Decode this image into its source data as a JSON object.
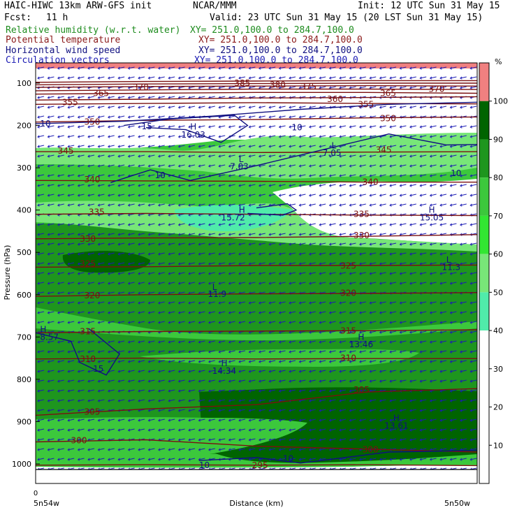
{
  "header": {
    "model": "HAIC-HIWC 13km ARW-GFS init",
    "center": "NCAR/MMM",
    "init": "Init: 12 UTC Sun 31 May 15",
    "fcst_label": "Fcst:",
    "fcst_value": "11 h",
    "valid": "Valid: 23 UTC Sun 31 May 15 (20 LST Sun 31 May 15)"
  },
  "fields": [
    {
      "name": "Relative humidity (w.r.t. water)",
      "xy": "XY= 251.0,100.0 to 284.7,100.0",
      "color": "#1e8c1e"
    },
    {
      "name": "Potential temperature",
      "xy": "XY= 251.0,100.0 to 284.7,100.0",
      "color": "#8b1a1a"
    },
    {
      "name": "Horizontal wind speed",
      "xy": "XY= 251.0,100.0 to 284.7,100.0",
      "color": "#101080"
    },
    {
      "name": "Circulation vectors",
      "xy": "XY= 251.0,100.0 to 284.7,100.0",
      "color": "#1a1ab4"
    }
  ],
  "colorbar": {
    "unit": "%",
    "ticks": [
      "100",
      "90",
      "80",
      "70",
      "60",
      "50",
      "40",
      "30",
      "20",
      "10"
    ],
    "colors": [
      "#f08080",
      "#006400",
      "#1e961e",
      "#3cc83c",
      "#32e632",
      "#78e678",
      "#50ebaa",
      "#ffffff",
      "#ffffff",
      "#ffffff",
      "#ffffff"
    ]
  },
  "chart_data": {
    "type": "heatmap",
    "title": "HAIC-HIWC 13km ARW-GFS init",
    "xlabel": "Distance (km)",
    "ylabel": "Pressure (hPa)",
    "x_ticks": [
      "0"
    ],
    "x_ends": [
      "5n54w",
      "5n50w"
    ],
    "ylim": [
      1050,
      85
    ],
    "y_ticks": [
      100,
      200,
      300,
      400,
      500,
      600,
      700,
      800,
      900,
      1000
    ],
    "theta_contours": [
      {
        "value": 295,
        "p": [
          1003,
          1002,
          1003,
          1002,
          1004
        ]
      },
      {
        "value": 300,
        "p": [
          948,
          943,
          958,
          965,
          972
        ]
      },
      {
        "value": 305,
        "p": [
          885,
          870,
          860,
          830,
          822
        ]
      },
      {
        "value": 310,
        "p": [
          752,
          750,
          752,
          751,
          751
        ]
      },
      {
        "value": 315,
        "p": [
          690,
          687,
          686,
          685,
          683
        ]
      },
      {
        "value": 320,
        "p": [
          604,
          600,
          598,
          597,
          595
        ]
      },
      {
        "value": 325,
        "p": [
          535,
          534,
          531,
          531,
          530
        ]
      },
      {
        "value": 330,
        "p": [
          468,
          466,
          465,
          462,
          458
        ]
      },
      {
        "value": 335,
        "p": [
          410,
          408,
          410,
          412,
          413
        ]
      },
      {
        "value": 340,
        "p": [
          330,
          331,
          332,
          334,
          334
        ]
      },
      {
        "value": 345,
        "p": [
          262,
          262,
          264,
          263,
          262
        ]
      },
      {
        "value": 350,
        "p": [
          192,
          188,
          186,
          182,
          180
        ]
      },
      {
        "value": 355,
        "p": [
          150,
          148,
          146,
          148,
          149
        ]
      },
      {
        "value": 360,
        "p": [
          140,
          138,
          135,
          134,
          132
        ]
      },
      {
        "value": 365,
        "p": [
          126,
          124,
          122,
          122,
          124
        ]
      },
      {
        "value": 370,
        "p": [
          118,
          116,
          114,
          114,
          115
        ]
      },
      {
        "value": 375,
        "p": [
          110,
          108,
          107,
          106,
          107
        ]
      },
      {
        "value": 380,
        "p": [
          104,
          102,
          101,
          100,
          100
        ]
      },
      {
        "value": 385,
        "p": [
          98,
          96,
          95,
          94,
          94
        ]
      }
    ],
    "theta_labels": [
      {
        "text": "355",
        "x": 0.06,
        "p": 145
      },
      {
        "text": "350",
        "x": 0.11,
        "p": 192
      },
      {
        "text": "345",
        "x": 0.05,
        "p": 260
      },
      {
        "text": "340",
        "x": 0.11,
        "p": 328
      },
      {
        "text": "335",
        "x": 0.12,
        "p": 405
      },
      {
        "text": "330",
        "x": 0.1,
        "p": 468
      },
      {
        "text": "325",
        "x": 0.1,
        "p": 527
      },
      {
        "text": "320",
        "x": 0.11,
        "p": 602
      },
      {
        "text": "315",
        "x": 0.1,
        "p": 687
      },
      {
        "text": "310",
        "x": 0.1,
        "p": 752
      },
      {
        "text": "305",
        "x": 0.11,
        "p": 877
      },
      {
        "text": "300",
        "x": 0.08,
        "p": 945
      },
      {
        "text": "370",
        "x": 0.22,
        "p": 110
      },
      {
        "text": "365",
        "x": 0.13,
        "p": 124
      },
      {
        "text": "385",
        "x": 0.45,
        "p": 100
      },
      {
        "text": "380",
        "x": 0.53,
        "p": 104
      },
      {
        "text": "375",
        "x": 0.6,
        "p": 108
      },
      {
        "text": "360",
        "x": 0.66,
        "p": 138
      },
      {
        "text": "355",
        "x": 0.73,
        "p": 150
      },
      {
        "text": "350",
        "x": 0.78,
        "p": 183
      },
      {
        "text": "345",
        "x": 0.77,
        "p": 258
      },
      {
        "text": "340",
        "x": 0.74,
        "p": 334
      },
      {
        "text": "335",
        "x": 0.72,
        "p": 410
      },
      {
        "text": "330",
        "x": 0.72,
        "p": 460
      },
      {
        "text": "325",
        "x": 0.69,
        "p": 532
      },
      {
        "text": "320",
        "x": 0.69,
        "p": 596
      },
      {
        "text": "315",
        "x": 0.69,
        "p": 685
      },
      {
        "text": "310",
        "x": 0.69,
        "p": 750
      },
      {
        "text": "305",
        "x": 0.72,
        "p": 825
      },
      {
        "text": "300",
        "x": 0.74,
        "p": 966
      },
      {
        "text": "295",
        "x": 0.49,
        "p": 1003
      },
      {
        "text": "365",
        "x": 0.78,
        "p": 124
      },
      {
        "text": "370",
        "x": 0.89,
        "p": 114
      }
    ],
    "wind_contours": [
      {
        "value": 10,
        "path": [
          [
            0.0,
            196
          ],
          [
            0.2,
            190
          ],
          [
            0.4,
            178
          ],
          [
            0.6,
            162
          ],
          [
            0.8,
            150
          ],
          [
            1.0,
            145
          ]
        ]
      },
      {
        "value": 15,
        "path": [
          [
            0.2,
            200
          ],
          [
            0.3,
            185
          ],
          [
            0.45,
            176
          ],
          [
            0.48,
            200
          ],
          [
            0.42,
            240
          ],
          [
            0.34,
            210
          ],
          [
            0.25,
            205
          ]
        ]
      },
      {
        "value": 10,
        "path": [
          [
            0.17,
            335
          ],
          [
            0.26,
            305
          ],
          [
            0.35,
            330
          ],
          [
            0.48,
            300
          ],
          [
            0.6,
            270
          ],
          [
            0.7,
            245
          ],
          [
            0.8,
            220
          ],
          [
            0.93,
            246
          ],
          [
            1.0,
            245
          ]
        ]
      },
      {
        "value": 10,
        "path": [
          [
            0.5,
            395
          ],
          [
            0.57,
            385
          ],
          [
            0.59,
            400
          ],
          [
            0.56,
            412
          ],
          [
            0.48,
            408
          ]
        ]
      },
      {
        "value": 10,
        "path": [
          [
            0.0,
            690
          ],
          [
            0.08,
            710
          ],
          [
            0.1,
            760
          ],
          [
            0.16,
            790
          ],
          [
            0.19,
            740
          ],
          [
            0.12,
            680
          ]
        ]
      },
      {
        "value": 10,
        "path": [
          [
            0.37,
            992
          ],
          [
            0.5,
            985
          ],
          [
            0.6,
            998
          ],
          [
            0.7,
            985
          ],
          [
            0.8,
            972
          ],
          [
            1.0,
            968
          ]
        ]
      }
    ],
    "wind_labels": [
      {
        "text": "10",
        "x": 0.01,
        "p": 196
      },
      {
        "text": "15",
        "x": 0.24,
        "p": 202
      },
      {
        "text": "10",
        "x": 0.58,
        "p": 205
      },
      {
        "text": "10",
        "x": 0.27,
        "p": 318
      },
      {
        "text": "10",
        "x": 0.94,
        "p": 313
      },
      {
        "text": "15",
        "x": 0.13,
        "p": 775
      },
      {
        "text": "10",
        "x": 0.37,
        "p": 1003
      },
      {
        "text": "10",
        "x": 0.56,
        "p": 988
      }
    ],
    "extrema": [
      {
        "text": "H",
        "x": 0.35,
        "p": 203
      },
      {
        "text": "16.03",
        "x": 0.33,
        "p": 222
      },
      {
        "text": "H",
        "x": 0.46,
        "p": 400
      },
      {
        "text": "15.72",
        "x": 0.42,
        "p": 418
      },
      {
        "text": "H",
        "x": 0.89,
        "p": 400
      },
      {
        "text": "15.05",
        "x": 0.87,
        "p": 418
      },
      {
        "text": "L",
        "x": 0.46,
        "p": 280
      },
      {
        "text": "7.03",
        "x": 0.44,
        "p": 297
      },
      {
        "text": "L",
        "x": 0.67,
        "p": 248
      },
      {
        "text": "7.05",
        "x": 0.65,
        "p": 265
      },
      {
        "text": "L",
        "x": 0.93,
        "p": 518
      },
      {
        "text": "11.3",
        "x": 0.92,
        "p": 535
      },
      {
        "text": "L",
        "x": 0.4,
        "p": 582
      },
      {
        "text": "11.9",
        "x": 0.39,
        "p": 599
      },
      {
        "text": "H",
        "x": 0.01,
        "p": 682
      },
      {
        "text": "8.57",
        "x": 0.01,
        "p": 700
      },
      {
        "text": "H",
        "x": 0.73,
        "p": 700
      },
      {
        "text": "13.46",
        "x": 0.71,
        "p": 718
      },
      {
        "text": "H",
        "x": 0.42,
        "p": 762
      },
      {
        "text": "14.34",
        "x": 0.4,
        "p": 780
      },
      {
        "text": "H",
        "x": 0.81,
        "p": 892
      },
      {
        "text": "13.61",
        "x": 0.79,
        "p": 910
      }
    ]
  }
}
